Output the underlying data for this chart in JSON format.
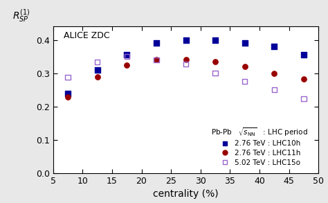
{
  "lhc10h_x": [
    7.5,
    12.5,
    17.5,
    22.5,
    27.5,
    32.5,
    37.5,
    42.5,
    47.5
  ],
  "lhc10h_y": [
    0.24,
    0.31,
    0.355,
    0.39,
    0.4,
    0.4,
    0.39,
    0.38,
    0.355
  ],
  "lhc11h_x": [
    7.5,
    12.5,
    17.5,
    22.5,
    27.5,
    32.5,
    37.5,
    42.5,
    47.5
  ],
  "lhc11h_y": [
    0.228,
    0.288,
    0.325,
    0.34,
    0.34,
    0.335,
    0.32,
    0.3,
    0.282
  ],
  "lhc15o_x": [
    7.5,
    12.5,
    17.5,
    22.5,
    27.5,
    32.5,
    37.5,
    42.5,
    47.5
  ],
  "lhc15o_y": [
    0.288,
    0.334,
    0.35,
    0.34,
    0.328,
    0.3,
    0.275,
    0.25,
    0.224
  ],
  "lhc10h_color": "#000099",
  "lhc11h_color": "#990000",
  "lhc15o_color": "#9966CC",
  "xlabel": "centrality (%)",
  "annotation": "ALICE ZDC",
  "xlim": [
    5,
    50
  ],
  "ylim": [
    0,
    0.44
  ],
  "yticks": [
    0.0,
    0.1,
    0.2,
    0.3,
    0.4
  ],
  "xticks": [
    5,
    10,
    15,
    20,
    25,
    30,
    35,
    40,
    45,
    50
  ],
  "xticklabels": [
    "5",
    "10",
    "15",
    "20",
    "25",
    "30",
    "35",
    "40",
    "45",
    "50"
  ],
  "legend_title": "Pb-Pb   $\\sqrt{s_{\\mathrm{NN}}}$   : LHC period",
  "legend_entries": [
    "2.76 TeV : LHC10h",
    "2.76 TeV : LHC11h",
    "5.02 TeV : LHC15o"
  ],
  "bg_color": "#e8e8e8",
  "plot_bg_color": "#ffffff"
}
